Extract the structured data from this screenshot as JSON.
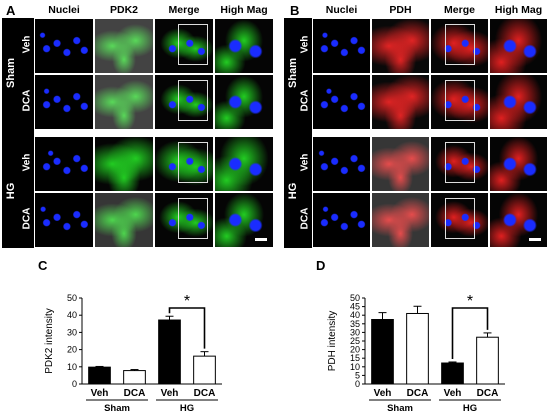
{
  "figure": {
    "panels": [
      {
        "label": "A",
        "columns": [
          "Nuclei",
          "PDK2",
          "Merge",
          "High Mag"
        ],
        "groups": [
          {
            "name": "Sham",
            "rows": [
              "Veh",
              "DCA"
            ]
          },
          {
            "name": "HG",
            "rows": [
              "Veh",
              "DCA"
            ]
          }
        ],
        "stain_color": "#22cc22"
      },
      {
        "label": "B",
        "columns": [
          "Nuclei",
          "PDH",
          "Merge",
          "High Mag"
        ],
        "groups": [
          {
            "name": "Sham",
            "rows": [
              "Veh",
              "DCA"
            ]
          },
          {
            "name": "HG",
            "rows": [
              "Veh",
              "DCA"
            ]
          }
        ],
        "stain_color": "#e02020"
      }
    ],
    "colors": {
      "nuclei": "#1a2cff",
      "bar_dark": "#000000",
      "bar_light": "#ffffff"
    }
  },
  "chart_data": [
    {
      "panel_label": "C",
      "type": "bar",
      "title": "",
      "ylabel": "PDK2 intensity",
      "ylim": [
        0,
        50
      ],
      "yticks": [
        0,
        10,
        20,
        30,
        40,
        50
      ],
      "categories": [
        "Veh",
        "DCA",
        "Veh",
        "DCA"
      ],
      "groups": [
        "Sham",
        "HG"
      ],
      "values": [
        9.8,
        7.8,
        37.2,
        16.2
      ],
      "errors": [
        0.4,
        0.6,
        2.2,
        2.6
      ],
      "fills": [
        "#000000",
        "#ffffff",
        "#000000",
        "#ffffff"
      ],
      "significance": {
        "from": 2,
        "to": 3,
        "label": "*"
      }
    },
    {
      "panel_label": "D",
      "type": "bar",
      "title": "",
      "ylabel": "PDH intensity",
      "ylim": [
        0,
        50
      ],
      "yticks": [
        0,
        5,
        10,
        15,
        20,
        25,
        30,
        35,
        40,
        45,
        50
      ],
      "categories": [
        "Veh",
        "DCA",
        "Veh",
        "DCA"
      ],
      "groups": [
        "Sham",
        "HG"
      ],
      "values": [
        37.5,
        41.0,
        12.2,
        27.2
      ],
      "errors": [
        4.0,
        4.2,
        0.6,
        2.5
      ],
      "fills": [
        "#000000",
        "#ffffff",
        "#000000",
        "#ffffff"
      ],
      "significance": {
        "from": 2,
        "to": 3,
        "label": "*"
      }
    }
  ]
}
